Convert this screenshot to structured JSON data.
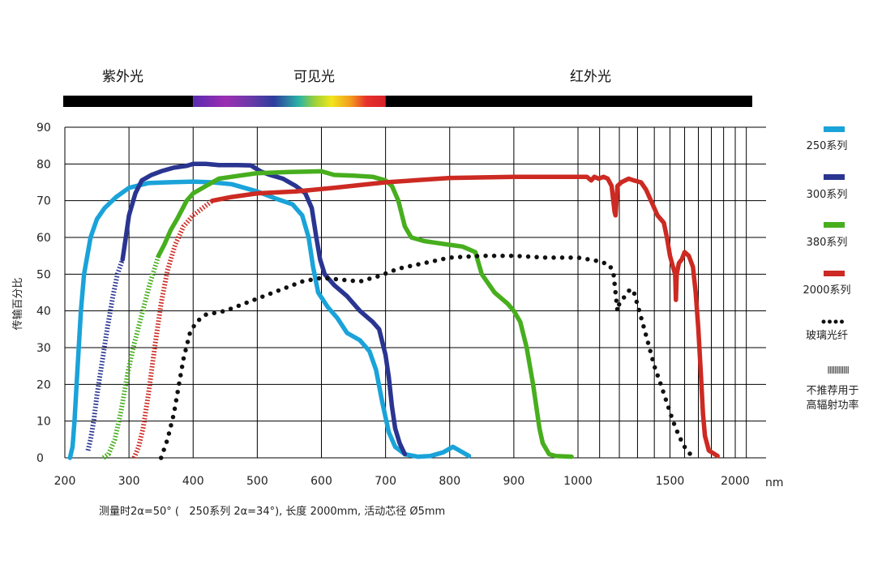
{
  "chart_data": {
    "type": "line",
    "xlabel": "nm",
    "ylabel": "传输百分比",
    "ylim": [
      0,
      90
    ],
    "yticks": [
      0,
      10,
      20,
      30,
      40,
      50,
      60,
      70,
      80,
      90
    ],
    "xticks": [
      200,
      300,
      400,
      500,
      600,
      700,
      800,
      900,
      1000,
      1500,
      2000
    ],
    "grid": true,
    "legend_position": "right",
    "footnote": "测量时2α=50° (   250系列 2α=34°), 长度 2000mm, 活动芯径 Ø5mm",
    "spectrum_bands": [
      {
        "label": "紫外光",
        "from": 200,
        "to": 400
      },
      {
        "label": "可见光",
        "from": 400,
        "to": 700
      },
      {
        "label": "红外光",
        "from": 700,
        "to": 2200
      }
    ],
    "legend_not_recommended": "不推荐用于高辐射功率",
    "series": [
      {
        "name": "250系列",
        "color": "#1aa3d9",
        "style": "solid",
        "points": [
          [
            208,
            0
          ],
          [
            212,
            3
          ],
          [
            215,
            10
          ],
          [
            220,
            25
          ],
          [
            225,
            40
          ],
          [
            230,
            50
          ],
          [
            240,
            60
          ],
          [
            250,
            65
          ],
          [
            262,
            68
          ],
          [
            280,
            71
          ],
          [
            300,
            73.5
          ],
          [
            330,
            74.8
          ],
          [
            360,
            75
          ],
          [
            400,
            75.2
          ],
          [
            430,
            75
          ],
          [
            460,
            74.5
          ],
          [
            500,
            72.5
          ],
          [
            530,
            70.5
          ],
          [
            555,
            69
          ],
          [
            570,
            66
          ],
          [
            580,
            60
          ],
          [
            587,
            52
          ],
          [
            595,
            45
          ],
          [
            610,
            41
          ],
          [
            625,
            38
          ],
          [
            640,
            34
          ],
          [
            660,
            32
          ],
          [
            675,
            29
          ],
          [
            685,
            24
          ],
          [
            695,
            15
          ],
          [
            705,
            7
          ],
          [
            715,
            3
          ],
          [
            730,
            1
          ],
          [
            750,
            0.3
          ],
          [
            770,
            0.5
          ],
          [
            790,
            1.5
          ],
          [
            805,
            3
          ],
          [
            815,
            2
          ],
          [
            830,
            0.5
          ]
        ]
      },
      {
        "name": "300系列",
        "color": "#2a3591",
        "style": "solid",
        "points": [
          [
            290,
            54
          ],
          [
            295,
            60
          ],
          [
            300,
            66
          ],
          [
            310,
            72
          ],
          [
            320,
            75.5
          ],
          [
            335,
            77
          ],
          [
            350,
            78
          ],
          [
            370,
            79
          ],
          [
            390,
            79.5
          ],
          [
            400,
            80
          ],
          [
            420,
            80
          ],
          [
            440,
            79.7
          ],
          [
            470,
            79.7
          ],
          [
            490,
            79.6
          ],
          [
            505,
            78
          ],
          [
            520,
            77
          ],
          [
            540,
            76
          ],
          [
            560,
            74
          ],
          [
            575,
            72
          ],
          [
            585,
            68
          ],
          [
            592,
            60
          ],
          [
            598,
            54
          ],
          [
            605,
            50
          ],
          [
            620,
            47
          ],
          [
            640,
            44
          ],
          [
            660,
            40
          ],
          [
            680,
            37
          ],
          [
            690,
            35
          ],
          [
            700,
            28
          ],
          [
            705,
            22
          ],
          [
            710,
            14
          ],
          [
            715,
            8
          ],
          [
            722,
            4
          ],
          [
            730,
            1
          ]
        ]
      },
      {
        "name": "380系列",
        "color": "#47ae1e",
        "style": "solid",
        "points": [
          [
            346,
            55
          ],
          [
            355,
            58
          ],
          [
            365,
            62
          ],
          [
            375,
            65
          ],
          [
            390,
            70
          ],
          [
            400,
            72
          ],
          [
            420,
            74
          ],
          [
            440,
            76
          ],
          [
            460,
            76.5
          ],
          [
            480,
            77
          ],
          [
            500,
            77.5
          ],
          [
            550,
            77.8
          ],
          [
            600,
            78
          ],
          [
            620,
            77
          ],
          [
            650,
            76.8
          ],
          [
            680,
            76.5
          ],
          [
            700,
            75.5
          ],
          [
            710,
            74
          ],
          [
            720,
            70
          ],
          [
            730,
            63
          ],
          [
            740,
            60
          ],
          [
            760,
            59
          ],
          [
            780,
            58.5
          ],
          [
            800,
            58
          ],
          [
            820,
            57.5
          ],
          [
            840,
            56
          ],
          [
            850,
            50
          ],
          [
            870,
            45
          ],
          [
            890,
            42
          ],
          [
            900,
            40
          ],
          [
            910,
            37
          ],
          [
            920,
            30
          ],
          [
            930,
            20
          ],
          [
            940,
            8
          ],
          [
            945,
            4
          ],
          [
            955,
            1
          ],
          [
            965,
            0.5
          ],
          [
            990,
            0.3
          ]
        ]
      },
      {
        "name": "2000系列",
        "color": "#cc2a22",
        "style": "solid",
        "points": [
          [
            430,
            70
          ],
          [
            460,
            71
          ],
          [
            500,
            72
          ],
          [
            560,
            72.5
          ],
          [
            620,
            73.5
          ],
          [
            700,
            75
          ],
          [
            800,
            76.2
          ],
          [
            900,
            76.5
          ],
          [
            1000,
            76.5
          ],
          [
            1040,
            76.5
          ],
          [
            1060,
            75.5
          ],
          [
            1075,
            76.5
          ],
          [
            1095,
            76
          ],
          [
            1120,
            76.5
          ],
          [
            1140,
            76
          ],
          [
            1160,
            74
          ],
          [
            1175,
            67
          ],
          [
            1180,
            66
          ],
          [
            1190,
            74
          ],
          [
            1210,
            75
          ],
          [
            1250,
            76
          ],
          [
            1280,
            75.5
          ],
          [
            1320,
            75
          ],
          [
            1350,
            73
          ],
          [
            1380,
            70
          ],
          [
            1420,
            66
          ],
          [
            1460,
            64
          ],
          [
            1480,
            60
          ],
          [
            1500,
            55
          ],
          [
            1520,
            52
          ],
          [
            1535,
            50
          ],
          [
            1540,
            43
          ],
          [
            1545,
            50
          ],
          [
            1560,
            53
          ],
          [
            1580,
            54
          ],
          [
            1600,
            56
          ],
          [
            1630,
            55
          ],
          [
            1660,
            52
          ],
          [
            1680,
            45
          ],
          [
            1700,
            35
          ],
          [
            1720,
            22
          ],
          [
            1735,
            12
          ],
          [
            1750,
            6
          ],
          [
            1780,
            2
          ],
          [
            1850,
            0.5
          ]
        ]
      },
      {
        "name": "玻璃光纤",
        "color": "#111111",
        "style": "dotted",
        "points": [
          [
            350,
            0
          ],
          [
            360,
            5
          ],
          [
            370,
            12
          ],
          [
            378,
            20
          ],
          [
            385,
            27
          ],
          [
            395,
            34
          ],
          [
            405,
            37
          ],
          [
            420,
            39
          ],
          [
            450,
            40
          ],
          [
            480,
            42
          ],
          [
            510,
            44
          ],
          [
            540,
            46
          ],
          [
            570,
            48
          ],
          [
            600,
            49
          ],
          [
            630,
            48.5
          ],
          [
            660,
            48
          ],
          [
            690,
            49.5
          ],
          [
            720,
            51.5
          ],
          [
            760,
            53
          ],
          [
            800,
            54.5
          ],
          [
            850,
            55
          ],
          [
            900,
            55
          ],
          [
            950,
            54.5
          ],
          [
            1000,
            54.5
          ],
          [
            1050,
            54
          ],
          [
            1100,
            53.5
          ],
          [
            1150,
            52.5
          ],
          [
            1170,
            50
          ],
          [
            1180,
            45
          ],
          [
            1190,
            40
          ],
          [
            1200,
            42
          ],
          [
            1230,
            44
          ],
          [
            1260,
            46
          ],
          [
            1280,
            45
          ],
          [
            1310,
            40
          ],
          [
            1340,
            35
          ],
          [
            1370,
            30
          ],
          [
            1400,
            25
          ],
          [
            1440,
            20
          ],
          [
            1480,
            15
          ],
          [
            1520,
            10
          ],
          [
            1560,
            6
          ],
          [
            1600,
            3
          ],
          [
            1640,
            1
          ],
          [
            1680,
            0
          ]
        ]
      }
    ],
    "not_recommended_segments": [
      {
        "series": "300系列",
        "color": "#2a3591",
        "points": [
          [
            236,
            2
          ],
          [
            240,
            5
          ],
          [
            245,
            10
          ],
          [
            250,
            17
          ],
          [
            258,
            26
          ],
          [
            266,
            35
          ],
          [
            275,
            44
          ],
          [
            282,
            50
          ],
          [
            290,
            54
          ]
        ]
      },
      {
        "series": "380系列",
        "color": "#47ae1e",
        "points": [
          [
            260,
            0
          ],
          [
            268,
            1
          ],
          [
            278,
            5
          ],
          [
            288,
            13
          ],
          [
            298,
            23
          ],
          [
            308,
            31
          ],
          [
            320,
            39
          ],
          [
            332,
            47
          ],
          [
            346,
            55
          ]
        ]
      },
      {
        "series": "2000系列",
        "color": "#cc2a22",
        "points": [
          [
            308,
            0
          ],
          [
            315,
            3
          ],
          [
            322,
            8
          ],
          [
            330,
            17
          ],
          [
            340,
            30
          ],
          [
            350,
            42
          ],
          [
            360,
            51
          ],
          [
            372,
            58
          ],
          [
            385,
            63
          ],
          [
            400,
            66
          ],
          [
            415,
            68
          ],
          [
            430,
            70
          ]
        ]
      }
    ]
  }
}
